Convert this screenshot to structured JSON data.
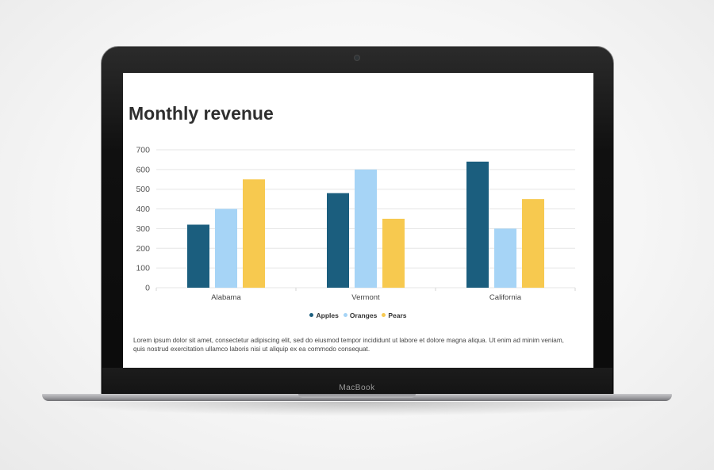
{
  "device": {
    "brand": "MacBook"
  },
  "page": {
    "title": "Monthly revenue",
    "body_text": "Lorem ipsum dolor sit amet, consectetur adipiscing elit, sed do eiusmod tempor incididunt ut labore et dolore magna aliqua. Ut enim ad minim veniam, quis nostrud exercitation ullamco laboris nisi ut aliquip ex ea commodo consequat."
  },
  "colors": {
    "apples": "#1b5e7e",
    "oranges": "#a6d4f6",
    "pears": "#f7c94f",
    "grid": "#e6e6e6",
    "axis_text": "#555555"
  },
  "chart_data": {
    "type": "bar",
    "title": "Monthly revenue",
    "categories": [
      "Alabama",
      "Vermont",
      "California"
    ],
    "series": [
      {
        "name": "Apples",
        "color": "#1b5e7e",
        "values": [
          320,
          480,
          640
        ]
      },
      {
        "name": "Oranges",
        "color": "#a6d4f6",
        "values": [
          400,
          600,
          300
        ]
      },
      {
        "name": "Pears",
        "color": "#f7c94f",
        "values": [
          550,
          350,
          450
        ]
      }
    ],
    "ylim": [
      0,
      700
    ],
    "yticks": [
      0,
      100,
      200,
      300,
      400,
      500,
      600,
      700
    ],
    "grid": true,
    "legend_position": "bottom"
  }
}
